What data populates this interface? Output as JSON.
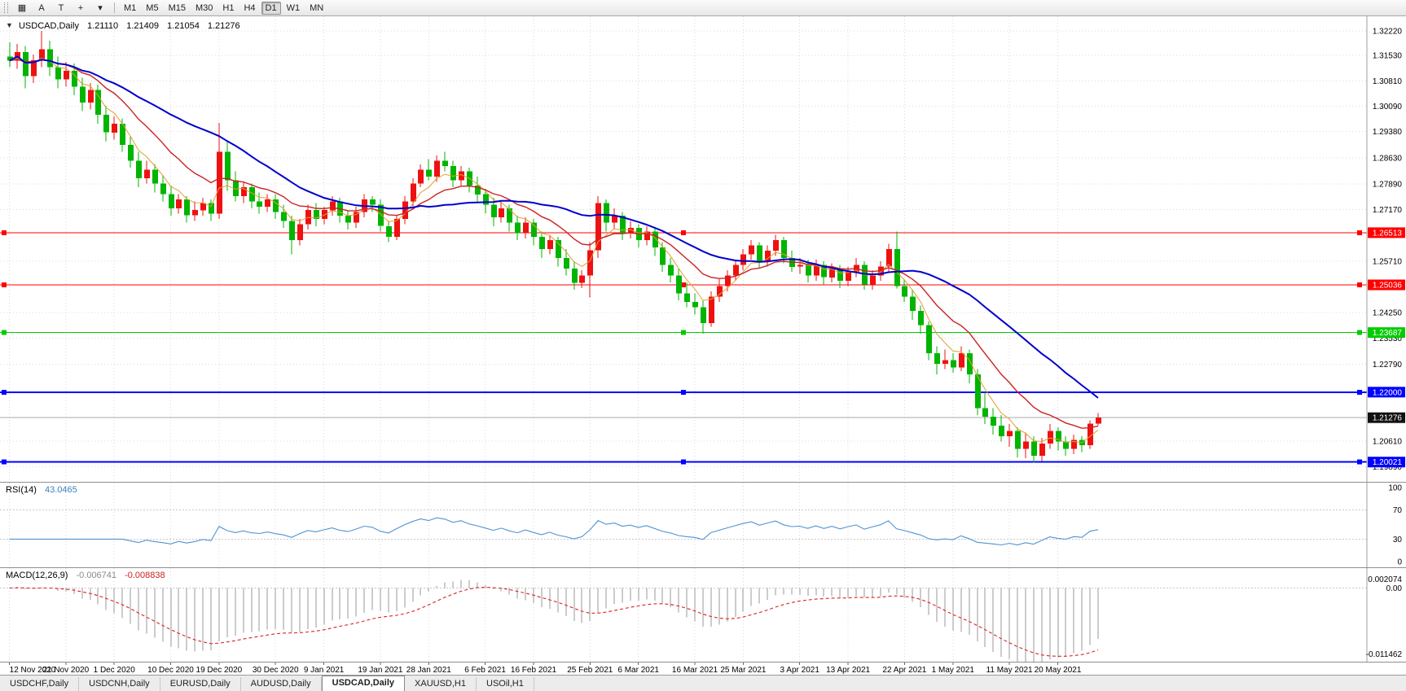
{
  "toolbar": {
    "tool_buttons": [
      {
        "name": "chart-mode-icon",
        "glyph": "▦"
      },
      {
        "name": "text-tool-button",
        "glyph": "A"
      },
      {
        "name": "trend-tool-button",
        "glyph": "T"
      },
      {
        "name": "crosshair-icon",
        "glyph": "+"
      },
      {
        "name": "tools-caret-icon",
        "glyph": "▾"
      }
    ],
    "timeframes": [
      "M1",
      "M5",
      "M15",
      "M30",
      "H1",
      "H4",
      "D1",
      "W1",
      "MN"
    ],
    "active_timeframe": "D1"
  },
  "chart_header": {
    "marker": "▼",
    "title": "USDCAD,Daily",
    "open": "1.21110",
    "high": "1.21409",
    "low": "1.21054",
    "close": "1.21276"
  },
  "price_axis": {
    "labels": [
      "1.32220",
      "1.31530",
      "1.30810",
      "1.30090",
      "1.29380",
      "1.28630",
      "1.27890",
      "1.27170",
      "1.25710",
      "1.24250",
      "1.23530",
      "1.22790",
      "1.20610",
      "1.19890"
    ],
    "values": [
      1.3222,
      1.3153,
      1.3081,
      1.3009,
      1.2938,
      1.2863,
      1.2789,
      1.2717,
      1.2571,
      1.2425,
      1.2353,
      1.2279,
      1.2061,
      1.1989
    ]
  },
  "levels": [
    {
      "label": "1.26513",
      "value": 1.26513,
      "color": "#ff0000",
      "width": 1
    },
    {
      "label": "1.25036",
      "value": 1.25036,
      "color": "#ff0000",
      "width": 1
    },
    {
      "label": "1.23687",
      "value": 1.23687,
      "color": "#00cc00",
      "width": 1
    },
    {
      "label": "1.22000",
      "value": 1.22,
      "color": "#0000ff",
      "width": 2
    },
    {
      "label": "1.20021",
      "value": 1.20021,
      "color": "#0000ff",
      "width": 2
    }
  ],
  "current_price": {
    "label": "1.21276",
    "value": 1.21276
  },
  "rsi": {
    "name": "RSI(14)",
    "value": "43.0465",
    "color": "#4f93d4",
    "scale_labels": [
      "100",
      "70",
      "30",
      "0"
    ],
    "scale_values": [
      100,
      70,
      30,
      0
    ],
    "level_lines": [
      70,
      30
    ],
    "range": [
      0,
      100
    ]
  },
  "macd": {
    "name": "MACD(12,26,9)",
    "main_value": "-0.006741",
    "signal_value": "-0.008838",
    "scale_labels": [
      "0.002074",
      "0.00",
      "-0.011462"
    ],
    "scale_max": 0.002074,
    "scale_min": -0.011462,
    "histogram_color": "#9a9a9a",
    "signal_color": "#dd2222"
  },
  "tabs": {
    "items": [
      {
        "label": "USDCHF,Daily",
        "active": false
      },
      {
        "label": "USDCNH,Daily",
        "active": false
      },
      {
        "label": "EURUSD,Daily",
        "active": false
      },
      {
        "label": "AUDUSD,Daily",
        "active": false
      },
      {
        "label": "USDCAD,Daily",
        "active": true
      },
      {
        "label": "XAUUSD,H1",
        "active": false
      },
      {
        "label": "USOil,H1",
        "active": false
      }
    ]
  },
  "chart_data": {
    "type": "candlestick",
    "symbol": "USDCAD",
    "period": "Daily",
    "price_range": {
      "min": 1.196,
      "max": 1.325
    },
    "bull_color": "#ee1111",
    "bear_color": "#00b400",
    "indicators": {
      "rsi_period": 14,
      "macd_fast": 12,
      "macd_slow": 26,
      "macd_signal": 9,
      "rsi_last": 43.0465,
      "macd_last": -0.006741,
      "macd_signal_last": -0.008838
    },
    "overlays": [
      {
        "name": "ma-fast-line",
        "type": "ema",
        "period": 5,
        "color": "#e0a030",
        "width": 1
      },
      {
        "name": "ma-medium-line",
        "type": "ema",
        "period": 13,
        "color": "#cc2222",
        "width": 1.4
      },
      {
        "name": "ma-slow-line",
        "type": "sma",
        "period": 26,
        "color": "#0000cd",
        "width": 2
      }
    ],
    "time_axis": {
      "labels": [
        "12 Nov 2020",
        "21 Nov 2020",
        "1 Dec 2020",
        "10 Dec 2020",
        "19 Dec 2020",
        "30 Dec 2020",
        "9 Jan 2021",
        "19 Jan 2021",
        "28 Jan 2021",
        "6 Feb 2021",
        "16 Feb 2021",
        "25 Feb 2021",
        "6 Mar 2021",
        "16 Mar 2021",
        "25 Mar 2021",
        "3 Apr 2021",
        "13 Apr 2021",
        "22 Apr 2021",
        "1 May 2021",
        "11 May 2021",
        "20 May 2021"
      ],
      "bar_indices": [
        0,
        7,
        13,
        20,
        26,
        33,
        39,
        46,
        52,
        59,
        65,
        72,
        78,
        85,
        91,
        98,
        104,
        111,
        117,
        124,
        130
      ]
    },
    "bars": [
      [
        1.315,
        1.319,
        1.312,
        1.3138
      ],
      [
        1.3138,
        1.3185,
        1.3115,
        1.3162
      ],
      [
        1.3162,
        1.318,
        1.306,
        1.3095
      ],
      [
        1.3095,
        1.3155,
        1.3075,
        1.314
      ],
      [
        1.314,
        1.3222,
        1.312,
        1.317
      ],
      [
        1.317,
        1.3195,
        1.3095,
        1.312
      ],
      [
        1.312,
        1.315,
        1.306,
        1.3085
      ],
      [
        1.3085,
        1.3135,
        1.3065,
        1.311
      ],
      [
        1.311,
        1.313,
        1.304,
        1.3065
      ],
      [
        1.3065,
        1.309,
        1.2995,
        1.302
      ],
      [
        1.302,
        1.3075,
        1.3,
        1.3055
      ],
      [
        1.3055,
        1.307,
        1.296,
        1.2985
      ],
      [
        1.2985,
        1.301,
        1.291,
        1.2935
      ],
      [
        1.2935,
        1.298,
        1.2915,
        1.296
      ],
      [
        1.296,
        1.2975,
        1.288,
        1.29
      ],
      [
        1.29,
        1.2925,
        1.2835,
        1.2855
      ],
      [
        1.2855,
        1.288,
        1.278,
        1.2805
      ],
      [
        1.2805,
        1.2855,
        1.279,
        1.283
      ],
      [
        1.283,
        1.2845,
        1.2765,
        1.279
      ],
      [
        1.279,
        1.2815,
        1.274,
        1.276
      ],
      [
        1.276,
        1.2785,
        1.27,
        1.272
      ],
      [
        1.272,
        1.276,
        1.2705,
        1.2745
      ],
      [
        1.2745,
        1.2755,
        1.268,
        1.27
      ],
      [
        1.27,
        1.274,
        1.2685,
        1.2715
      ],
      [
        1.2715,
        1.275,
        1.27,
        1.2735
      ],
      [
        1.2735,
        1.2745,
        1.2685,
        1.2705
      ],
      [
        1.2705,
        1.2962,
        1.269,
        1.288
      ],
      [
        1.288,
        1.291,
        1.277,
        1.28
      ],
      [
        1.28,
        1.2825,
        1.274,
        1.2755
      ],
      [
        1.2755,
        1.2795,
        1.2735,
        1.278
      ],
      [
        1.278,
        1.279,
        1.272,
        1.274
      ],
      [
        1.274,
        1.2765,
        1.2705,
        1.2725
      ],
      [
        1.2725,
        1.276,
        1.271,
        1.2745
      ],
      [
        1.2745,
        1.276,
        1.269,
        1.271
      ],
      [
        1.271,
        1.273,
        1.2665,
        1.2685
      ],
      [
        1.2685,
        1.27,
        1.259,
        1.263
      ],
      [
        1.263,
        1.269,
        1.2615,
        1.2675
      ],
      [
        1.2675,
        1.273,
        1.266,
        1.2715
      ],
      [
        1.2715,
        1.2735,
        1.267,
        1.269
      ],
      [
        1.269,
        1.2725,
        1.2675,
        1.2715
      ],
      [
        1.2715,
        1.2755,
        1.27,
        1.274
      ],
      [
        1.274,
        1.275,
        1.268,
        1.27
      ],
      [
        1.27,
        1.2715,
        1.266,
        1.268
      ],
      [
        1.268,
        1.2725,
        1.2665,
        1.271
      ],
      [
        1.271,
        1.276,
        1.2695,
        1.2745
      ],
      [
        1.2745,
        1.2755,
        1.271,
        1.273
      ],
      [
        1.273,
        1.2745,
        1.2655,
        1.267
      ],
      [
        1.267,
        1.2685,
        1.2625,
        1.264
      ],
      [
        1.264,
        1.27,
        1.263,
        1.269
      ],
      [
        1.269,
        1.2755,
        1.2675,
        1.274
      ],
      [
        1.274,
        1.2805,
        1.2725,
        1.279
      ],
      [
        1.279,
        1.2845,
        1.278,
        1.283
      ],
      [
        1.283,
        1.286,
        1.28,
        1.281
      ],
      [
        1.281,
        1.287,
        1.2795,
        1.2855
      ],
      [
        1.2855,
        1.288,
        1.2825,
        1.284
      ],
      [
        1.284,
        1.2855,
        1.278,
        1.28
      ],
      [
        1.28,
        1.284,
        1.2785,
        1.2825
      ],
      [
        1.2825,
        1.2835,
        1.2765,
        1.2785
      ],
      [
        1.2785,
        1.281,
        1.274,
        1.276
      ],
      [
        1.276,
        1.2775,
        1.2705,
        1.273
      ],
      [
        1.273,
        1.275,
        1.267,
        1.2695
      ],
      [
        1.2695,
        1.274,
        1.268,
        1.272
      ],
      [
        1.272,
        1.273,
        1.2655,
        1.268
      ],
      [
        1.268,
        1.27,
        1.263,
        1.265
      ],
      [
        1.265,
        1.2695,
        1.2635,
        1.268
      ],
      [
        1.268,
        1.269,
        1.2615,
        1.264
      ],
      [
        1.264,
        1.2655,
        1.258,
        1.2605
      ],
      [
        1.2605,
        1.2645,
        1.259,
        1.263
      ],
      [
        1.263,
        1.264,
        1.2555,
        1.258
      ],
      [
        1.258,
        1.2605,
        1.253,
        1.255
      ],
      [
        1.255,
        1.257,
        1.249,
        1.251
      ],
      [
        1.251,
        1.2545,
        1.2495,
        1.253
      ],
      [
        1.253,
        1.2625,
        1.2468,
        1.2602
      ],
      [
        1.2602,
        1.2755,
        1.258,
        1.2735
      ],
      [
        1.2735,
        1.2745,
        1.2655,
        1.268
      ],
      [
        1.268,
        1.272,
        1.266,
        1.27
      ],
      [
        1.27,
        1.271,
        1.263,
        1.265
      ],
      [
        1.265,
        1.2685,
        1.2635,
        1.2665
      ],
      [
        1.2665,
        1.2675,
        1.261,
        1.263
      ],
      [
        1.263,
        1.267,
        1.2615,
        1.2655
      ],
      [
        1.2655,
        1.2665,
        1.2585,
        1.261
      ],
      [
        1.261,
        1.2625,
        1.254,
        1.256
      ],
      [
        1.256,
        1.258,
        1.251,
        1.253
      ],
      [
        1.253,
        1.255,
        1.246,
        1.248
      ],
      [
        1.248,
        1.251,
        1.244,
        1.2455
      ],
      [
        1.2455,
        1.248,
        1.242,
        1.244
      ],
      [
        1.244,
        1.246,
        1.2365,
        1.2395
      ],
      [
        1.2395,
        1.2485,
        1.2385,
        1.247
      ],
      [
        1.247,
        1.252,
        1.2455,
        1.25
      ],
      [
        1.25,
        1.2545,
        1.2485,
        1.253
      ],
      [
        1.253,
        1.2575,
        1.2515,
        1.256
      ],
      [
        1.256,
        1.2605,
        1.2545,
        1.259
      ],
      [
        1.259,
        1.263,
        1.2575,
        1.2615
      ],
      [
        1.2615,
        1.2625,
        1.255,
        1.257
      ],
      [
        1.257,
        1.2615,
        1.2555,
        1.26
      ],
      [
        1.26,
        1.2645,
        1.2585,
        1.263
      ],
      [
        1.263,
        1.264,
        1.2565,
        1.258
      ],
      [
        1.258,
        1.26,
        1.254,
        1.2555
      ],
      [
        1.2555,
        1.258,
        1.2535,
        1.256
      ],
      [
        1.256,
        1.2575,
        1.251,
        1.253
      ],
      [
        1.253,
        1.2575,
        1.2515,
        1.256
      ],
      [
        1.256,
        1.257,
        1.2505,
        1.2525
      ],
      [
        1.2525,
        1.2565,
        1.251,
        1.255
      ],
      [
        1.255,
        1.256,
        1.2495,
        1.2515
      ],
      [
        1.2515,
        1.2555,
        1.25,
        1.254
      ],
      [
        1.254,
        1.258,
        1.2525,
        1.256
      ],
      [
        1.256,
        1.257,
        1.249,
        1.2505
      ],
      [
        1.2505,
        1.2545,
        1.249,
        1.253
      ],
      [
        1.253,
        1.257,
        1.2515,
        1.2555
      ],
      [
        1.2555,
        1.262,
        1.254,
        1.2605
      ],
      [
        1.2605,
        1.2654,
        1.2493,
        1.25
      ],
      [
        1.25,
        1.252,
        1.2455,
        1.247
      ],
      [
        1.247,
        1.249,
        1.2405,
        1.243
      ],
      [
        1.243,
        1.2445,
        1.2365,
        1.239
      ],
      [
        1.239,
        1.24,
        1.229,
        1.231
      ],
      [
        1.231,
        1.233,
        1.225,
        1.228
      ],
      [
        1.228,
        1.232,
        1.2265,
        1.229
      ],
      [
        1.229,
        1.231,
        1.2255,
        1.227
      ],
      [
        1.227,
        1.233,
        1.226,
        1.231
      ],
      [
        1.231,
        1.232,
        1.2225,
        1.225
      ],
      [
        1.225,
        1.2265,
        1.2135,
        1.2155
      ],
      [
        1.2155,
        1.22,
        1.211,
        1.213
      ],
      [
        1.213,
        1.2155,
        1.208,
        1.2105
      ],
      [
        1.2105,
        1.2135,
        1.206,
        1.2075
      ],
      [
        1.2075,
        1.211,
        1.2045,
        1.209
      ],
      [
        1.209,
        1.21,
        1.2015,
        1.204
      ],
      [
        1.204,
        1.2085,
        1.2013,
        1.206
      ],
      [
        1.206,
        1.2075,
        1.2,
        1.202
      ],
      [
        1.202,
        1.207,
        1.2005,
        1.2055
      ],
      [
        1.2055,
        1.211,
        1.204,
        1.209
      ],
      [
        1.209,
        1.21,
        1.2035,
        1.206
      ],
      [
        1.206,
        1.2075,
        1.202,
        1.204
      ],
      [
        1.204,
        1.208,
        1.2025,
        1.2065
      ],
      [
        1.2065,
        1.2075,
        1.203,
        1.205
      ],
      [
        1.205,
        1.212,
        1.204,
        1.2111
      ],
      [
        1.2111,
        1.2141,
        1.2105,
        1.2128
      ]
    ]
  }
}
